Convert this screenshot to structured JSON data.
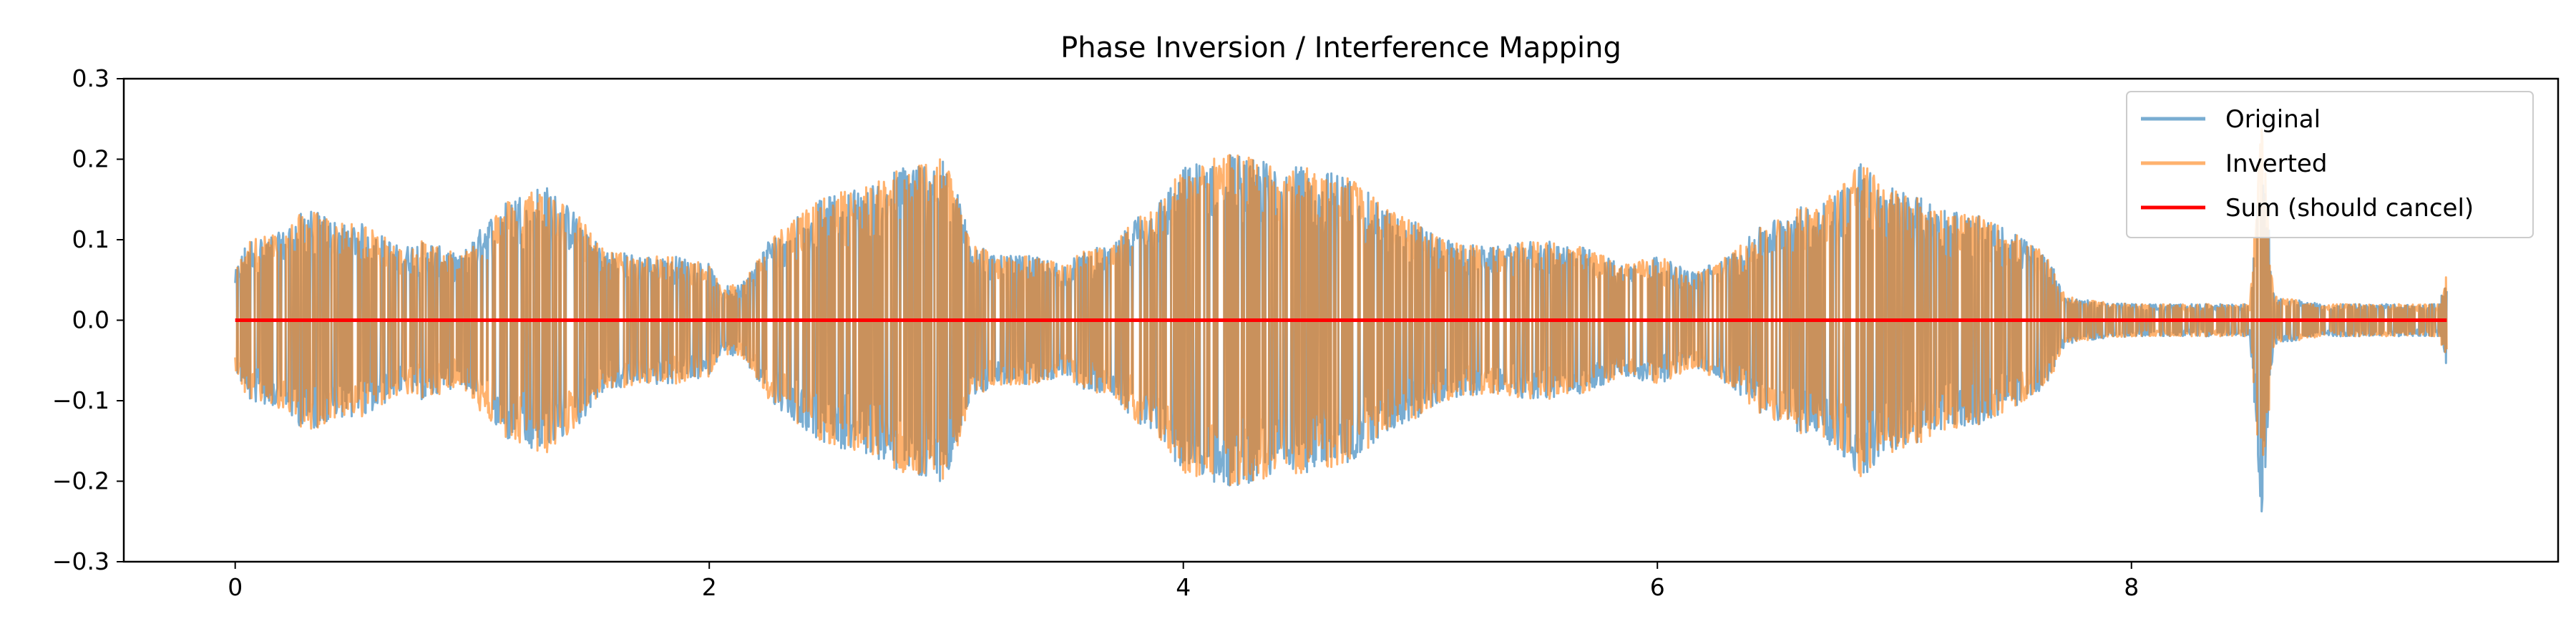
{
  "chart_data": {
    "type": "line",
    "title": "Phase Inversion / Interference Mapping",
    "xlabel": "",
    "ylabel": "",
    "xlim": [
      -0.47,
      9.8
    ],
    "ylim": [
      -0.3,
      0.3
    ],
    "x_ticks": [
      0,
      2,
      4,
      6,
      8
    ],
    "x_tick_labels": [
      "0",
      "2",
      "4",
      "6",
      "8"
    ],
    "y_ticks": [
      0.3,
      0.2,
      0.1,
      0.0,
      -0.1,
      -0.2,
      -0.3
    ],
    "y_tick_labels": [
      "0.3",
      "0.2",
      "0.1",
      "0.0",
      "−0.1",
      "−0.2",
      "−0.3"
    ],
    "grid": false,
    "legend_position": "top-right",
    "signal_duration": 9.33,
    "envelope": {
      "t": [
        0,
        0.05,
        0.2,
        0.3,
        0.45,
        0.55,
        0.7,
        0.8,
        0.95,
        1.05,
        1.15,
        1.3,
        1.45,
        1.55,
        1.7,
        1.85,
        2.0,
        2.05,
        2.15,
        2.25,
        2.4,
        2.55,
        2.7,
        2.8,
        2.9,
        3.0,
        3.1,
        3.2,
        3.35,
        3.5,
        3.6,
        3.7,
        3.8,
        3.9,
        4.0,
        4.1,
        4.2,
        4.3,
        4.5,
        4.7,
        4.85,
        5.0,
        5.1,
        5.3,
        5.5,
        5.7,
        5.85,
        6.0,
        6.15,
        6.3,
        6.45,
        6.6,
        6.75,
        6.85,
        6.95,
        7.05,
        7.2,
        7.35,
        7.5,
        7.65,
        7.72,
        7.8,
        8.0,
        8.3,
        8.5,
        8.55,
        8.6,
        8.8,
        9.1,
        9.3,
        9.33
      ],
      "amp": [
        0.06,
        0.1,
        0.11,
        0.14,
        0.12,
        0.12,
        0.09,
        0.1,
        0.08,
        0.12,
        0.15,
        0.17,
        0.13,
        0.09,
        0.08,
        0.08,
        0.07,
        0.04,
        0.05,
        0.1,
        0.14,
        0.16,
        0.17,
        0.19,
        0.2,
        0.2,
        0.11,
        0.08,
        0.08,
        0.07,
        0.09,
        0.09,
        0.13,
        0.15,
        0.19,
        0.2,
        0.21,
        0.2,
        0.19,
        0.18,
        0.14,
        0.12,
        0.1,
        0.09,
        0.1,
        0.09,
        0.07,
        0.08,
        0.06,
        0.08,
        0.12,
        0.14,
        0.16,
        0.2,
        0.17,
        0.16,
        0.14,
        0.13,
        0.11,
        0.08,
        0.03,
        0.025,
        0.02,
        0.02,
        0.02,
        0.25,
        0.03,
        0.02,
        0.02,
        0.02,
        0.06
      ]
    },
    "series": [
      {
        "name": "Original",
        "color": "#1f77b4",
        "alpha": 0.6,
        "values": "waveform"
      },
      {
        "name": "Inverted",
        "color": "#ff7f0e",
        "alpha": 0.6,
        "values": "negated waveform"
      },
      {
        "name": "Sum (should cancel)",
        "color": "#ff0000",
        "alpha": 1.0,
        "values": "zeros"
      }
    ]
  }
}
